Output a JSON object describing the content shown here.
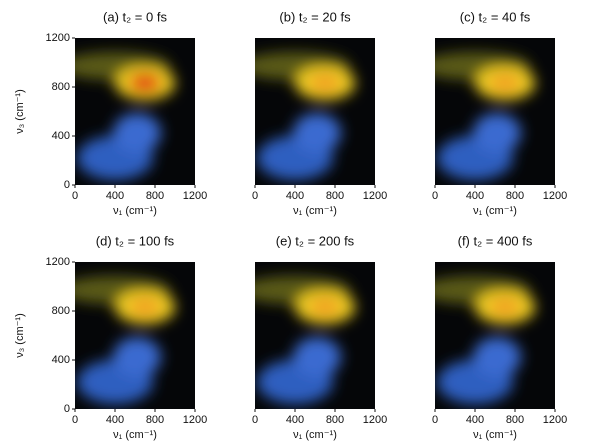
{
  "chart_data": [
    {
      "type": "heatmap",
      "title": "(a) t₂ = 0 fs",
      "xlabel": "ν₁ (cm⁻¹)",
      "ylabel": "ν₃ (cm⁻¹)",
      "xlim": [
        0,
        1200
      ],
      "ylim": [
        0,
        1200
      ],
      "xticks": [
        0,
        400,
        800,
        1200
      ],
      "yticks": [
        0,
        400,
        800,
        1200
      ]
    },
    {
      "type": "heatmap",
      "title": "(b) t₂ = 20 fs",
      "xlabel": "ν₁ (cm⁻¹)",
      "xlim": [
        0,
        1200
      ],
      "ylim": [
        0,
        1200
      ],
      "xticks": [
        0,
        400,
        800,
        1200
      ]
    },
    {
      "type": "heatmap",
      "title": "(c) t₂ = 40 fs",
      "xlabel": "ν₁ (cm⁻¹)",
      "xlim": [
        0,
        1200
      ],
      "ylim": [
        0,
        1200
      ],
      "xticks": [
        0,
        400,
        800,
        1200
      ]
    },
    {
      "type": "heatmap",
      "title": "(d) t₂ = 100 fs",
      "xlabel": "ν₁ (cm⁻¹)",
      "ylabel": "ν₃ (cm⁻¹)",
      "xlim": [
        0,
        1200
      ],
      "ylim": [
        0,
        1200
      ],
      "xticks": [
        0,
        400,
        800,
        1200
      ],
      "yticks": [
        0,
        400,
        800,
        1200
      ]
    },
    {
      "type": "heatmap",
      "title": "(e) t₂ = 200 fs",
      "xlabel": "ν₁ (cm⁻¹)",
      "xlim": [
        0,
        1200
      ],
      "ylim": [
        0,
        1200
      ],
      "xticks": [
        0,
        400,
        800,
        1200
      ]
    },
    {
      "type": "heatmap",
      "title": "(f) t₂ = 400 fs",
      "xlabel": "ν₁ (cm⁻¹)",
      "xlim": [
        0,
        1200
      ],
      "ylim": [
        0,
        1200
      ],
      "xticks": [
        0,
        400,
        800,
        1200
      ]
    }
  ]
}
